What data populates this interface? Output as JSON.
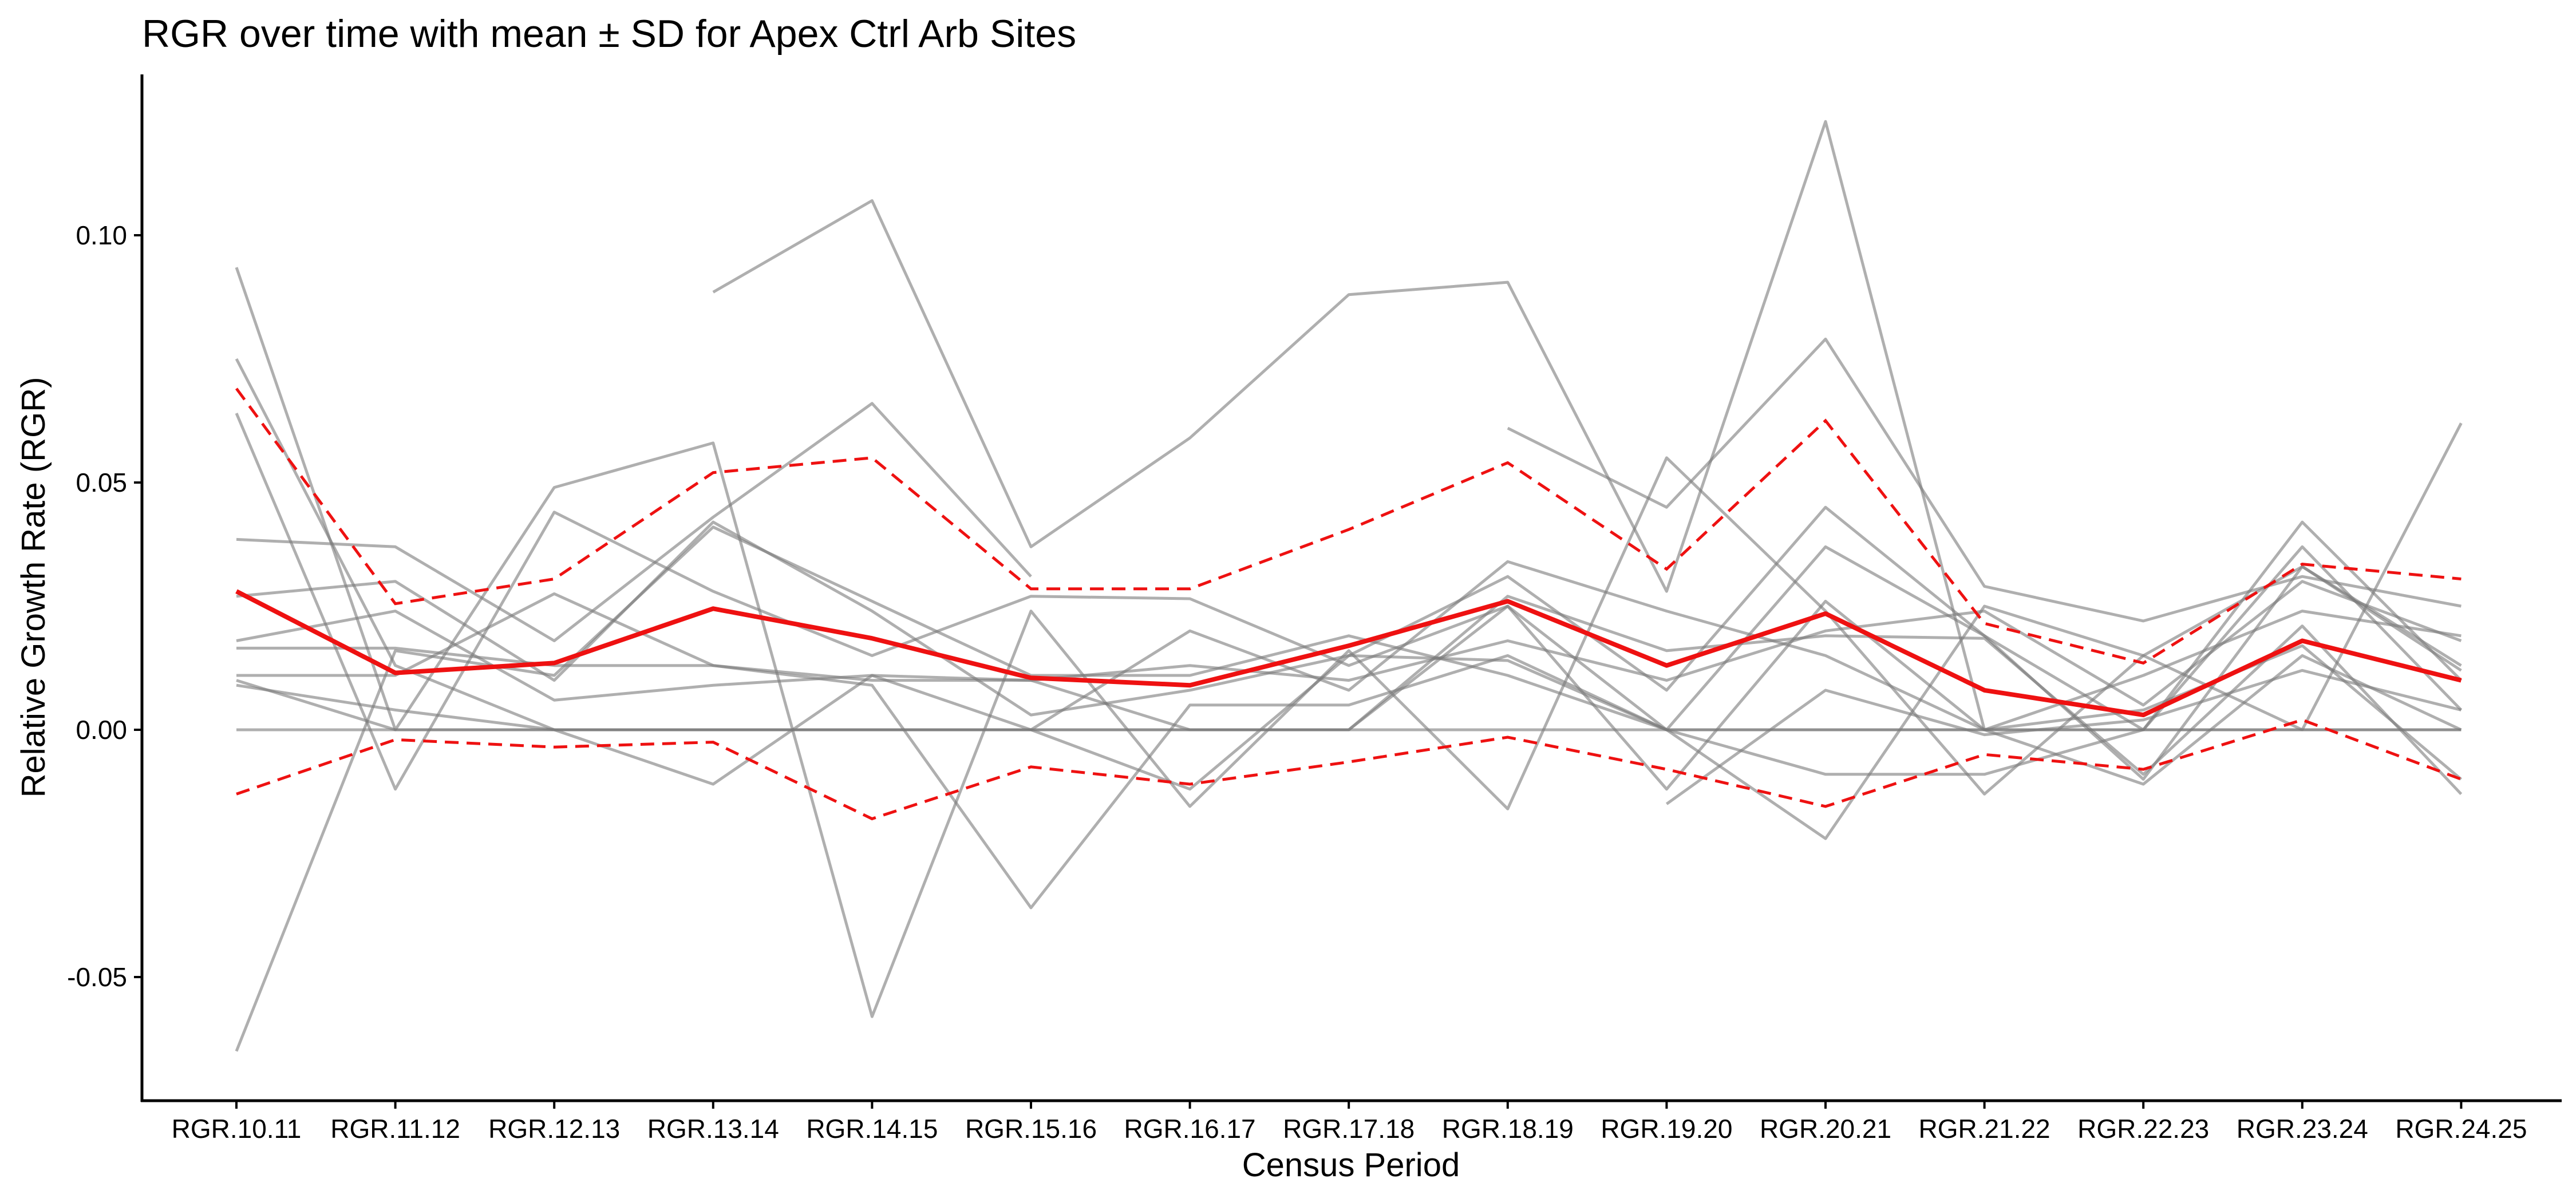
{
  "chart_data": {
    "type": "line",
    "title": "RGR over time with mean ± SD for Apex Ctrl Arb Sites",
    "xlabel": "Census Period",
    "ylabel": "Relative Growth Rate (RGR)",
    "ylim": [
      -0.075,
      0.135
    ],
    "yticks": [
      -0.05,
      0.0,
      0.05,
      0.1
    ],
    "ytick_labels": [
      "-0.05",
      "0.00",
      "0.05",
      "0.10"
    ],
    "grid": false,
    "categories": [
      "RGR.10.11",
      "RGR.11.12",
      "RGR.12.13",
      "RGR.13.14",
      "RGR.14.15",
      "RGR.15.16",
      "RGR.16.17",
      "RGR.17.18",
      "RGR.18.19",
      "RGR.19.20",
      "RGR.20.21",
      "RGR.21.22",
      "RGR.22.23",
      "RGR.23.24",
      "RGR.24.25"
    ],
    "colors": {
      "sites": "#7a7a7a",
      "mean": "#ee1111",
      "sd": "#ee1111"
    },
    "sites": [
      [
        0.0935,
        0.0,
        0.049,
        0.058,
        -0.058,
        0.024,
        -0.0155,
        0.016,
        -0.016,
        0.055,
        0.024,
        -0.013,
        0.015,
        0.033,
        0.013
      ],
      [
        -0.065,
        0.016,
        0.011,
        0.041,
        0.026,
        0.011,
        0.011,
        0.019,
        0.011,
        0.0,
        0.037,
        0.019,
        -0.01,
        0.033,
        0.012
      ],
      [
        0.075,
        0.013,
        0.0,
        0.0,
        0.0,
        0.0,
        0.0,
        0.0,
        0.025,
        0.0,
        0.0,
        0.0,
        0.0,
        0.0,
        0.0
      ],
      [
        0.064,
        -0.012,
        0.044,
        0.028,
        0.015,
        0.027,
        0.0265,
        0.013,
        0.025,
        -0.012,
        0.026,
        0.0,
        0.011,
        0.024,
        0.019
      ],
      [
        0.0385,
        0.037,
        0.018,
        0.043,
        0.066,
        0.031,
        null,
        null,
        0.061,
        0.045,
        0.079,
        0.029,
        0.022,
        0.031,
        0.025
      ],
      [
        0.027,
        0.03,
        0.01,
        0.042,
        0.024,
        0.003,
        0.008,
        0.015,
        0.031,
        0.008,
        0.045,
        0.019,
        0.0,
        0.042,
        0.01
      ],
      [
        0.018,
        0.024,
        0.006,
        0.009,
        0.011,
        0.01,
        0.013,
        0.01,
        0.018,
        0.01,
        0.02,
        0.024,
        0.005,
        0.03,
        0.018
      ],
      [
        0.0165,
        0.0165,
        0.013,
        0.013,
        0.01,
        0.01,
        0.0,
        0.0,
        0.027,
        0.016,
        0.019,
        0.0185,
        -0.009,
        0.021,
        -0.013
      ],
      [
        0.011,
        0.011,
        0.0275,
        0.013,
        0.009,
        -0.036,
        0.005,
        0.005,
        0.015,
        0.0,
        -0.022,
        0.025,
        0.015,
        0.0,
        0.062
      ],
      [
        0.009,
        0.004,
        0.0,
        -0.011,
        0.011,
        0.0,
        -0.012,
        0.015,
        0.014,
        0.0,
        -0.009,
        -0.009,
        0.0,
        0.037,
        0.004
      ],
      [
        0.0,
        0.0,
        0.0,
        0.0,
        0.0,
        0.0,
        0.02,
        0.008,
        0.034,
        0.024,
        0.015,
        0.0,
        -0.011,
        0.015,
        0.0
      ],
      [
        0.01,
        0.0,
        0.0,
        0.0,
        0.0,
        0.0,
        0.0,
        0.0,
        0.0,
        0.0,
        0.0,
        0.0,
        0.0,
        0.0,
        0.0
      ],
      [
        null,
        null,
        null,
        0.0885,
        0.107,
        0.037,
        0.059,
        0.088,
        0.0905,
        0.028,
        0.123,
        0.0,
        0.004,
        0.017,
        -0.01
      ],
      [
        null,
        null,
        null,
        null,
        null,
        null,
        null,
        null,
        null,
        -0.015,
        0.008,
        -0.001,
        0.002,
        0.012,
        0.004
      ]
    ],
    "series": [
      {
        "values": [
          0.028,
          0.0115,
          0.0135,
          0.0245,
          0.0185,
          0.0105,
          0.009,
          0.017,
          0.026,
          0.013,
          0.0235,
          0.008,
          0.003,
          0.018,
          0.01
        ]
      },
      {
        "values": [
          0.069,
          0.0255,
          0.0305,
          0.052,
          0.055,
          0.0285,
          0.0285,
          0.0405,
          0.054,
          0.0325,
          0.0625,
          0.0215,
          0.0135,
          0.0335,
          0.0305
        ]
      },
      {
        "values": [
          -0.013,
          -0.002,
          -0.0035,
          -0.0025,
          -0.018,
          -0.0075,
          -0.011,
          -0.0065,
          -0.0015,
          -0.008,
          -0.0155,
          -0.005,
          -0.008,
          0.002,
          -0.01
        ]
      }
    ]
  }
}
